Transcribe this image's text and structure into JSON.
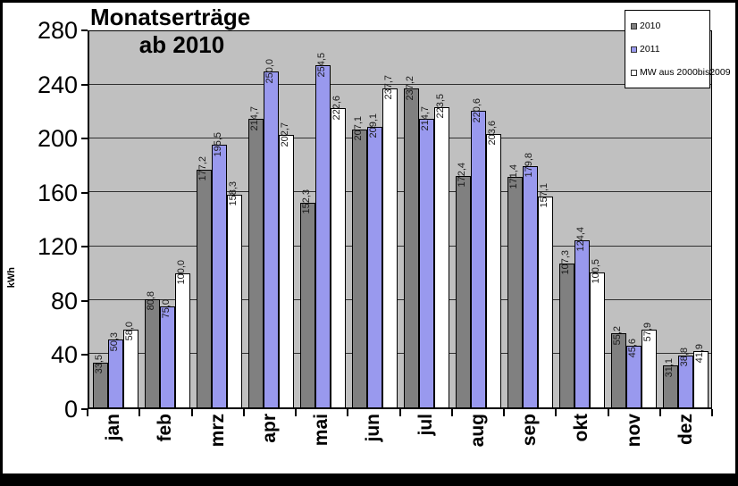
{
  "chart_data": {
    "type": "bar",
    "title": "Monatserträge ab 2010",
    "title_line1": "Monatserträge",
    "title_line2": "ab 2010",
    "ylabel": "kWh",
    "xlabel": "",
    "ylim": [
      0,
      280
    ],
    "y_ticks": [
      0,
      40,
      80,
      120,
      160,
      200,
      240,
      280
    ],
    "grid": true,
    "legend_position": "top-right",
    "decimal_separator": ",",
    "plot_background": "#c0c0c0",
    "categories": [
      "jan",
      "feb",
      "mrz",
      "apr",
      "mai",
      "jun",
      "jul",
      "aug",
      "sep",
      "okt",
      "nov",
      "dez"
    ],
    "series": [
      {
        "name": "2010",
        "color": "#808080",
        "values": [
          33.5,
          80.8,
          177.2,
          214.7,
          152.3,
          207.1,
          237.2,
          172.4,
          171.4,
          107.3,
          55.2,
          31.1
        ]
      },
      {
        "name": "2011",
        "color": "#9999ee",
        "values": [
          50.3,
          75.0,
          195.5,
          250.0,
          254.5,
          209.1,
          214.7,
          220.6,
          179.8,
          124.4,
          45.6,
          38.8
        ]
      },
      {
        "name": "MW aus 2000bis2009",
        "color": "#ffffff",
        "values": [
          58.0,
          100.0,
          158.3,
          202.7,
          222.6,
          237.7,
          223.5,
          203.6,
          157.1,
          100.5,
          57.9,
          41.9
        ]
      }
    ]
  }
}
